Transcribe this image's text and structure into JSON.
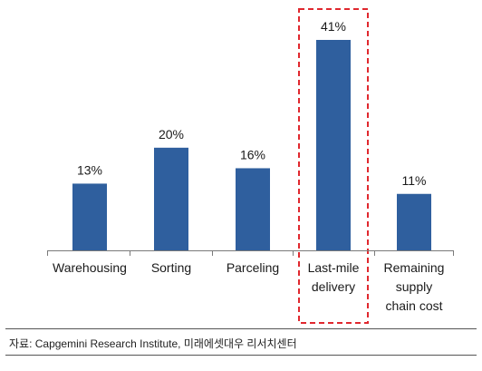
{
  "chart_data": {
    "type": "bar",
    "categories": [
      "Warehousing",
      "Sorting",
      "Parceling",
      "Last-mile delivery",
      "Remaining supply chain cost"
    ],
    "category_lines": [
      [
        "Warehousing"
      ],
      [
        "Sorting"
      ],
      [
        "Parceling"
      ],
      [
        "Last-mile",
        "delivery"
      ],
      [
        "Remaining",
        "supply",
        "chain cost"
      ]
    ],
    "values": [
      13,
      20,
      16,
      41,
      11
    ],
    "value_labels": [
      "13%",
      "20%",
      "16%",
      "41%",
      "11%"
    ],
    "unit": "%",
    "ylim": [
      0,
      41
    ],
    "grid": false,
    "highlight_index": 3,
    "bar_color": "#2f5f9e",
    "highlight_color": "#e0282e"
  },
  "source": {
    "text": "자료: Capgemini Research Institute, 미래에셋대우 리서치센터"
  }
}
